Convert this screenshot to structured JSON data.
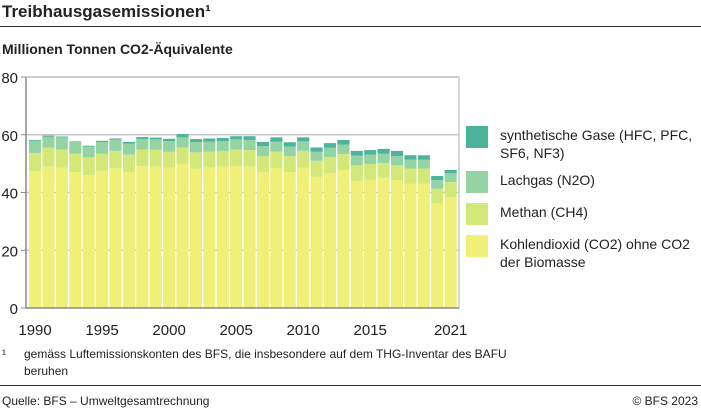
{
  "title": "Treibhausgasemissionen¹",
  "subtitle": "Millionen Tonnen CO2-Äquivalente",
  "footnote_mark": "¹",
  "footnote": "gemäss Luftemissionskonten des BFS, die insbesondere auf dem THG-Inventar des BAFU beruhen",
  "source": "Quelle:  BFS – Umweltgesamtrechnung",
  "copyright": "© BFS 2023",
  "chart_data": {
    "type": "bar",
    "stacked": true,
    "ylim": [
      0,
      80
    ],
    "yticks": [
      0,
      20,
      40,
      60,
      80
    ],
    "xtick_labels": [
      "1990",
      "1995",
      "2000",
      "2005",
      "2010",
      "2015",
      "2021"
    ],
    "grid": true,
    "legend_position": "right",
    "categories": [
      1990,
      1991,
      1992,
      1993,
      1994,
      1995,
      1996,
      1997,
      1998,
      1999,
      2000,
      2001,
      2002,
      2003,
      2004,
      2005,
      2006,
      2007,
      2008,
      2009,
      2010,
      2011,
      2012,
      2013,
      2014,
      2015,
      2016,
      2017,
      2018,
      2019,
      2020,
      2021
    ],
    "series": [
      {
        "name": "Kohlendioxid (CO2) ohne CO2 der Biomasse",
        "color": "#f0ef78",
        "values": [
          47.4,
          48.9,
          48.6,
          47.1,
          46.0,
          47.5,
          48.4,
          47.1,
          49.1,
          48.9,
          48.6,
          49.9,
          48.2,
          48.6,
          48.9,
          49.2,
          48.9,
          47.0,
          48.5,
          47.1,
          48.6,
          45.4,
          46.8,
          47.8,
          44.0,
          44.4,
          45.1,
          44.3,
          43.0,
          43.0,
          36.1,
          38.4
        ]
      },
      {
        "name": "Methan (CH4)",
        "color": "#d4e87a",
        "values": [
          6.3,
          6.6,
          6.3,
          6.3,
          6.2,
          5.9,
          6.0,
          6.0,
          5.8,
          5.9,
          5.5,
          5.7,
          5.7,
          5.5,
          5.5,
          5.7,
          5.8,
          5.6,
          5.6,
          5.5,
          5.8,
          5.6,
          5.5,
          5.5,
          5.4,
          5.5,
          5.1,
          5.1,
          5.3,
          5.3,
          5.2,
          5.2
        ]
      },
      {
        "name": "Lachgas (N2O)",
        "color": "#94d4a4",
        "values": [
          4.2,
          3.8,
          4.2,
          4.1,
          3.7,
          4.1,
          3.9,
          3.8,
          3.6,
          3.6,
          3.7,
          3.5,
          3.6,
          3.5,
          3.4,
          3.5,
          3.5,
          3.5,
          3.5,
          3.3,
          3.3,
          3.1,
          3.2,
          3.3,
          3.4,
          3.2,
          3.2,
          3.2,
          3.1,
          3.1,
          3.0,
          3.1
        ]
      },
      {
        "name": "synthetische Gase (HFC, PFC, SF6, NF3)",
        "color": "#4db39a",
        "values": [
          0.3,
          0.4,
          0.3,
          0.2,
          0.3,
          0.4,
          0.4,
          0.6,
          0.7,
          0.6,
          0.8,
          1.1,
          1.0,
          1.1,
          1.1,
          1.1,
          1.3,
          1.4,
          1.5,
          1.5,
          1.4,
          1.5,
          1.6,
          1.6,
          1.6,
          1.6,
          1.7,
          1.8,
          1.5,
          1.5,
          1.4,
          1.1
        ]
      }
    ]
  }
}
